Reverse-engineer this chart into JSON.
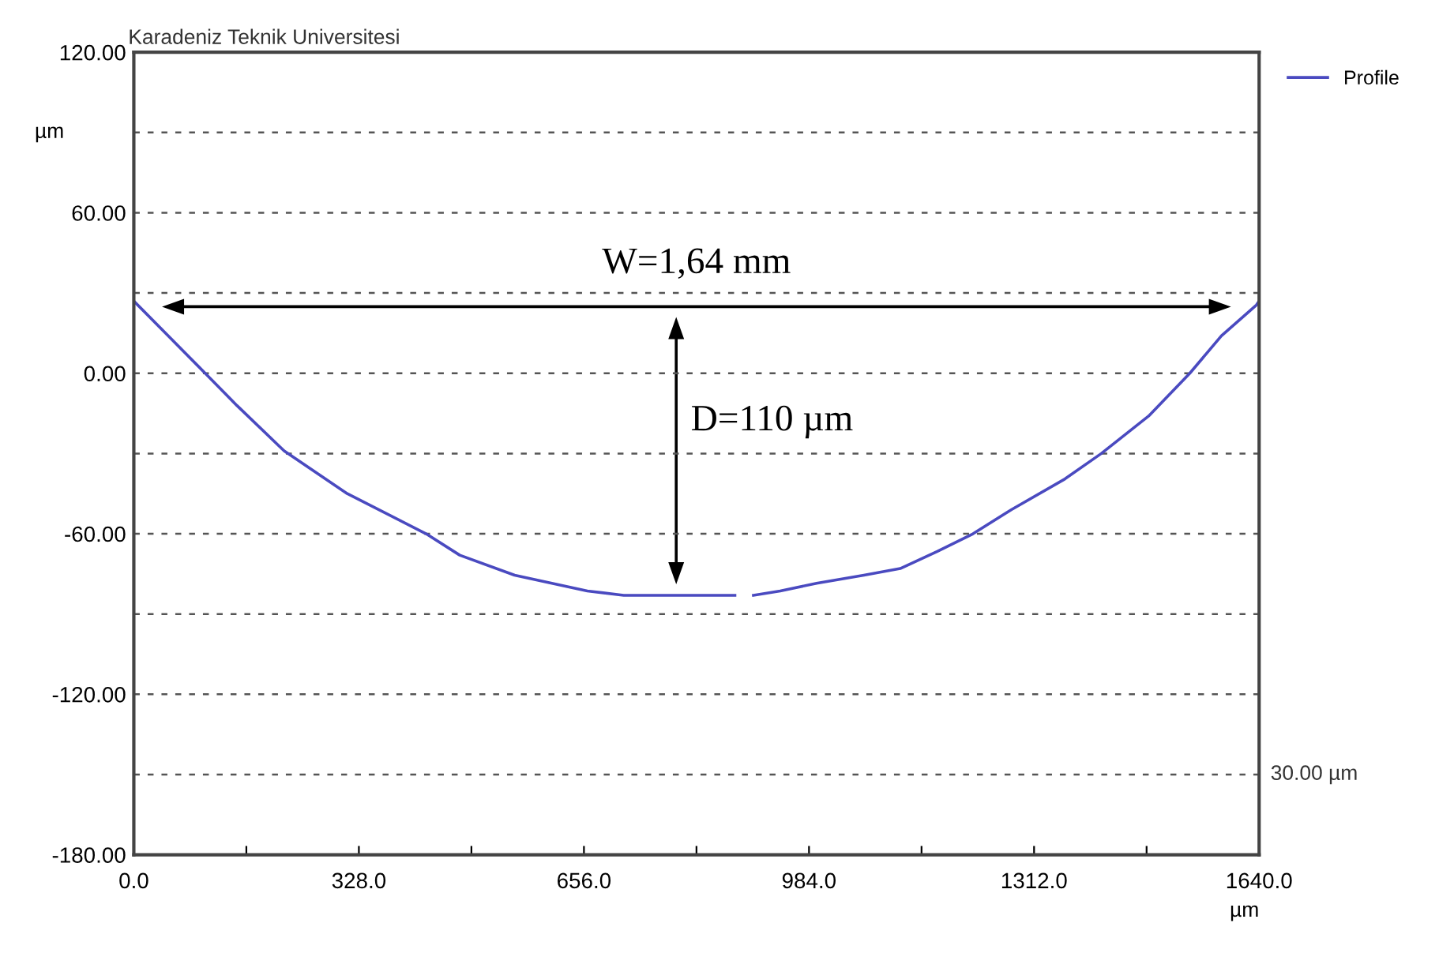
{
  "chart_data": {
    "type": "line",
    "title": "Karadeniz Teknik Universitesi",
    "xlabel": "µm",
    "ylabel": "µm",
    "series": [
      {
        "name": "Profile",
        "color": "#4a4ac0",
        "x": [
          0,
          50,
          104,
          150,
          219,
          311,
          426,
          475,
          555,
          661,
          714,
          876,
          890,
          903,
          942,
          995,
          1064,
          1117,
          1171,
          1223,
          1279,
          1357,
          1410,
          1479,
          1539,
          1585,
          1636,
          1640
        ],
        "values": [
          27,
          14,
          0,
          -12,
          -29,
          -45,
          -60,
          -68,
          -75.5,
          -81.4,
          -83,
          -83,
          null,
          -83,
          -81.4,
          -78.5,
          -75.5,
          -73,
          -66.6,
          -60,
          -51,
          -39.5,
          -30,
          -16,
          0,
          14,
          25.5,
          27
        ]
      }
    ],
    "xlim": [
      0,
      1640
    ],
    "xticks": [
      {
        "value": 0,
        "label": "0.0"
      },
      {
        "value": 164,
        "label": null
      },
      {
        "value": 328,
        "label": "328.0"
      },
      {
        "value": 492,
        "label": null
      },
      {
        "value": 656,
        "label": "656.0"
      },
      {
        "value": 820,
        "label": null
      },
      {
        "value": 984,
        "label": "984.0"
      },
      {
        "value": 1148,
        "label": null
      },
      {
        "value": 1312,
        "label": "1312.0"
      },
      {
        "value": 1476,
        "label": null
      },
      {
        "value": 1640,
        "label": "1640.0"
      }
    ],
    "ylim": [
      -180,
      120
    ],
    "yticks": [
      {
        "value": -180,
        "label": "-180.00"
      },
      {
        "value": -150,
        "label": null
      },
      {
        "value": -120,
        "label": "-120.00"
      },
      {
        "value": -90,
        "label": null
      },
      {
        "value": -60,
        "label": "-60.00"
      },
      {
        "value": -30,
        "label": null
      },
      {
        "value": 0,
        "label": "0.00"
      },
      {
        "value": 30,
        "label": null
      },
      {
        "value": 60,
        "label": "60.00"
      },
      {
        "value": 90,
        "label": null
      },
      {
        "value": 120,
        "label": "120.00"
      }
    ],
    "grid": "y",
    "legend": "top right",
    "marker": "none",
    "line_style": "solid",
    "annotations": [
      "W=1,64 mm",
      "D=110 µm",
      "30.00 µm"
    ]
  }
}
